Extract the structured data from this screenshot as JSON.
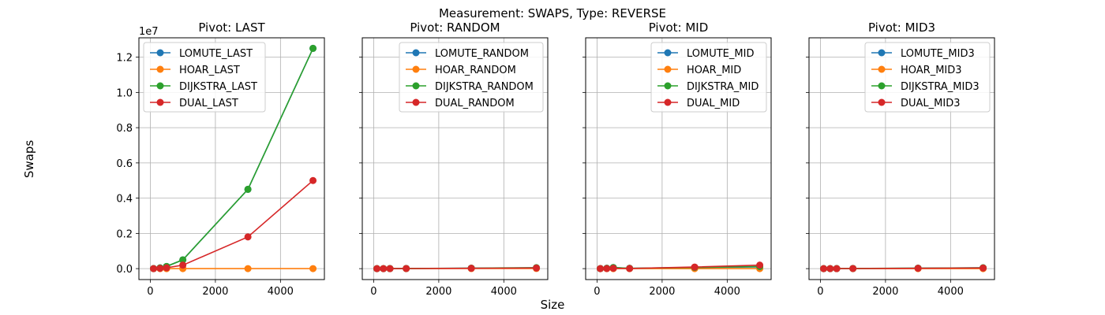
{
  "figure": {
    "title": "Measurement: SWAPS, Type: REVERSE",
    "xlabel": "Size",
    "ylabel": "Swaps",
    "y_scale_note": "1e7"
  },
  "colors": {
    "LOMUTE": "#1f77b4",
    "HOAR": "#ff7f0e",
    "DIJKSTRA": "#2ca02c",
    "DUAL": "#d62728"
  },
  "chart_data": [
    {
      "type": "line",
      "title": "Pivot: LAST",
      "xlim": [
        -350,
        5350
      ],
      "ylim": [
        -620000,
        13100000
      ],
      "xticks": [
        0,
        2000,
        4000
      ],
      "yticks": [
        0,
        2000000,
        4000000,
        6000000,
        8000000,
        10000000,
        12000000
      ],
      "ytick_labels": [
        "0.0",
        "0.2",
        "0.4",
        "0.6",
        "0.8",
        "1.0",
        "1.2"
      ],
      "grid": true,
      "legend": "top-left",
      "x": [
        100,
        300,
        500,
        1000,
        3000,
        5000
      ],
      "series": [
        {
          "name": "LOMUTE_LAST",
          "color_key": "LOMUTE",
          "values": [
            5000,
            45000,
            125000,
            500000,
            4500000,
            12500000
          ]
        },
        {
          "name": "HOAR_LAST",
          "color_key": "HOAR",
          "values": [
            50,
            150,
            250,
            500,
            1500,
            2500
          ]
        },
        {
          "name": "DIJKSTRA_LAST",
          "color_key": "DIJKSTRA",
          "values": [
            5000,
            45000,
            125000,
            500000,
            4500000,
            12500000
          ]
        },
        {
          "name": "DUAL_LAST",
          "color_key": "DUAL",
          "values": [
            2000,
            18000,
            50000,
            200000,
            1800000,
            5000000
          ]
        }
      ]
    },
    {
      "type": "line",
      "title": "Pivot: RANDOM",
      "xlim": [
        -350,
        5350
      ],
      "ylim": [
        -620000,
        13100000
      ],
      "xticks": [
        0,
        2000,
        4000
      ],
      "yticks": [
        0,
        2000000,
        4000000,
        6000000,
        8000000,
        10000000,
        12000000
      ],
      "grid": true,
      "legend": "top-right",
      "x": [
        100,
        300,
        500,
        1000,
        3000,
        5000
      ],
      "series": [
        {
          "name": "LOMUTE_RANDOM",
          "color_key": "LOMUTE",
          "values": [
            400,
            1500,
            3000,
            7000,
            25000,
            45000
          ]
        },
        {
          "name": "HOAR_RANDOM",
          "color_key": "HOAR",
          "values": [
            100,
            400,
            700,
            1500,
            5000,
            9000
          ]
        },
        {
          "name": "DIJKSTRA_RANDOM",
          "color_key": "DIJKSTRA",
          "values": [
            500,
            2000,
            4000,
            9000,
            30000,
            55000
          ]
        },
        {
          "name": "DUAL_RANDOM",
          "color_key": "DUAL",
          "values": [
            300,
            1200,
            2500,
            6000,
            20000,
            35000
          ]
        }
      ]
    },
    {
      "type": "line",
      "title": "Pivot: MID",
      "xlim": [
        -350,
        5350
      ],
      "ylim": [
        -620000,
        13100000
      ],
      "xticks": [
        0,
        2000,
        4000
      ],
      "yticks": [
        0,
        2000000,
        4000000,
        6000000,
        8000000,
        10000000,
        12000000
      ],
      "grid": true,
      "legend": "top-right",
      "x": [
        100,
        300,
        500,
        1000,
        3000,
        5000
      ],
      "series": [
        {
          "name": "LOMUTE_MID",
          "color_key": "LOMUTE",
          "values": [
            2500,
            22000,
            62000,
            15000,
            60000,
            100000
          ]
        },
        {
          "name": "HOAR_MID",
          "color_key": "HOAR",
          "values": [
            50,
            150,
            250,
            500,
            1500,
            2500
          ]
        },
        {
          "name": "DIJKSTRA_MID",
          "color_key": "DIJKSTRA",
          "values": [
            2500,
            22000,
            62000,
            20000,
            70000,
            120000
          ]
        },
        {
          "name": "DUAL_MID",
          "color_key": "DUAL",
          "values": [
            1000,
            8000,
            20000,
            10000,
            90000,
            200000
          ]
        }
      ]
    },
    {
      "type": "line",
      "title": "Pivot: MID3",
      "xlim": [
        -350,
        5350
      ],
      "ylim": [
        -620000,
        13100000
      ],
      "xticks": [
        0,
        2000,
        4000
      ],
      "yticks": [
        0,
        2000000,
        4000000,
        6000000,
        8000000,
        10000000,
        12000000
      ],
      "grid": true,
      "legend": "top-right",
      "x": [
        100,
        300,
        500,
        1000,
        3000,
        5000
      ],
      "series": [
        {
          "name": "LOMUTE_MID3",
          "color_key": "LOMUTE",
          "values": [
            400,
            1500,
            3000,
            7000,
            25000,
            45000
          ]
        },
        {
          "name": "HOAR_MID3",
          "color_key": "HOAR",
          "values": [
            50,
            150,
            250,
            500,
            1500,
            2500
          ]
        },
        {
          "name": "DIJKSTRA_MID3",
          "color_key": "DIJKSTRA",
          "values": [
            500,
            2000,
            4000,
            9000,
            30000,
            50000
          ]
        },
        {
          "name": "DUAL_MID3",
          "color_key": "DUAL",
          "values": [
            300,
            1200,
            2500,
            6000,
            20000,
            35000
          ]
        }
      ]
    }
  ]
}
